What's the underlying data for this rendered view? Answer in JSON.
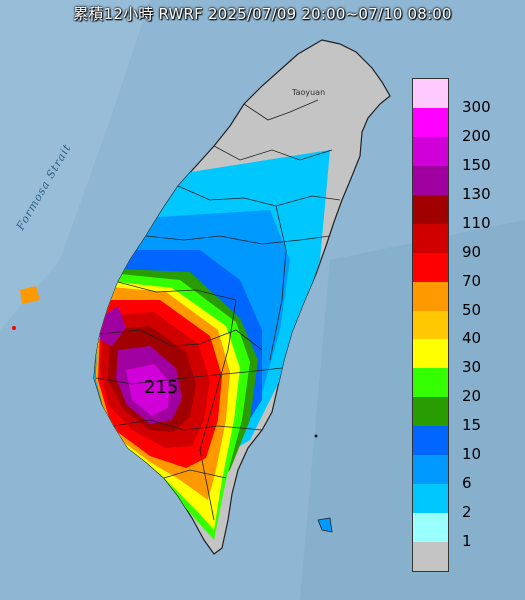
{
  "title": "累積12小時 RWRF 2025/07/09 20:00~07/10 08:00",
  "map_labels": {
    "strait": "Formosa Strait",
    "city": "Taoyuan",
    "max_value": "215"
  },
  "legend": {
    "labels": [
      "300",
      "200",
      "150",
      "130",
      "110",
      "90",
      "70",
      "50",
      "40",
      "30",
      "20",
      "15",
      "10",
      "6",
      "2",
      "1"
    ],
    "colors": [
      "#ffcbff",
      "#ff00ff",
      "#d000d8",
      "#a000a0",
      "#a00000",
      "#d00000",
      "#ff0000",
      "#ff9900",
      "#ffc800",
      "#ffff00",
      "#33ff00",
      "#289c00",
      "#0066ff",
      "#0099ff",
      "#00c8ff",
      "#99ffff",
      "#c4c4c4"
    ]
  },
  "colors": {
    "sea": "#8fb6d2",
    "land_base": "#c4c4c4",
    "border": "#222222"
  }
}
